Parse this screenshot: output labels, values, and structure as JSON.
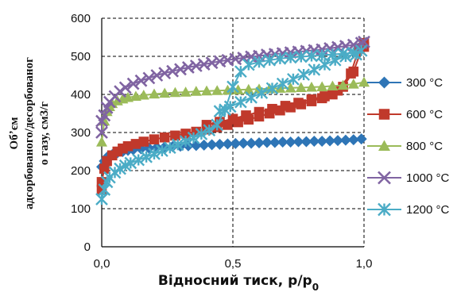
{
  "chart_data": {
    "type": "scatter",
    "xlabel": "Відносний тиск, p/p",
    "xlabel_sub": "0",
    "ylabel_lines": [
      "Обʼєм",
      "адсорбованого/десорбованог",
      "о газу, см3/г"
    ],
    "xlim": [
      0,
      1.0
    ],
    "ylim": [
      0,
      600
    ],
    "x_ticks": [
      0,
      0.5,
      1.0
    ],
    "x_tick_labels": [
      "0,0",
      "0,5",
      "1,0"
    ],
    "y_ticks": [
      0,
      100,
      200,
      300,
      400,
      500,
      600
    ],
    "y_tick_labels": [
      "0",
      "100",
      "200",
      "300",
      "400",
      "500",
      "600"
    ],
    "grid": "dashed",
    "legend_position": "right",
    "series": [
      {
        "name": "300 °C",
        "color": "#2E75B6",
        "marker": "diamond",
        "points": [
          [
            0.0,
            210
          ],
          [
            0.01,
            225
          ],
          [
            0.02,
            235
          ],
          [
            0.04,
            242
          ],
          [
            0.06,
            247
          ],
          [
            0.08,
            250
          ],
          [
            0.1,
            253
          ],
          [
            0.12,
            255
          ],
          [
            0.15,
            257
          ],
          [
            0.18,
            259
          ],
          [
            0.21,
            261
          ],
          [
            0.24,
            262
          ],
          [
            0.27,
            263
          ],
          [
            0.3,
            264
          ],
          [
            0.33,
            265
          ],
          [
            0.36,
            266
          ],
          [
            0.39,
            267
          ],
          [
            0.42,
            268
          ],
          [
            0.45,
            269
          ],
          [
            0.48,
            270
          ],
          [
            0.51,
            271
          ],
          [
            0.54,
            272
          ],
          [
            0.57,
            272
          ],
          [
            0.6,
            273
          ],
          [
            0.63,
            274
          ],
          [
            0.66,
            274
          ],
          [
            0.69,
            275
          ],
          [
            0.72,
            275
          ],
          [
            0.75,
            276
          ],
          [
            0.78,
            276
          ],
          [
            0.81,
            277
          ],
          [
            0.84,
            277
          ],
          [
            0.87,
            278
          ],
          [
            0.9,
            279
          ],
          [
            0.93,
            280
          ],
          [
            0.96,
            281
          ],
          [
            0.99,
            283
          ]
        ]
      },
      {
        "name": "600 °C",
        "color": "#C0392B",
        "marker": "square",
        "points": [
          [
            0.0,
            150
          ],
          [
            0.0,
            170
          ],
          [
            0.01,
            205
          ],
          [
            0.02,
            225
          ],
          [
            0.04,
            240
          ],
          [
            0.06,
            250
          ],
          [
            0.08,
            258
          ],
          [
            0.1,
            264
          ],
          [
            0.13,
            270
          ],
          [
            0.16,
            276
          ],
          [
            0.2,
            282
          ],
          [
            0.24,
            287
          ],
          [
            0.28,
            292
          ],
          [
            0.32,
            297
          ],
          [
            0.36,
            302
          ],
          [
            0.4,
            308
          ],
          [
            0.44,
            314
          ],
          [
            0.48,
            320
          ],
          [
            0.52,
            327
          ],
          [
            0.56,
            334
          ],
          [
            0.6,
            342
          ],
          [
            0.64,
            350
          ],
          [
            0.68,
            358
          ],
          [
            0.72,
            366
          ],
          [
            0.76,
            374
          ],
          [
            0.8,
            382
          ],
          [
            0.84,
            390
          ],
          [
            0.88,
            400
          ],
          [
            0.92,
            420
          ],
          [
            0.96,
            460
          ],
          [
            1.0,
            535
          ],
          [
            1.0,
            525
          ],
          [
            0.98,
            520
          ],
          [
            0.95,
            455
          ],
          [
            0.9,
            410
          ],
          [
            0.85,
            395
          ],
          [
            0.8,
            387
          ],
          [
            0.75,
            378
          ],
          [
            0.7,
            370
          ],
          [
            0.65,
            362
          ],
          [
            0.6,
            354
          ],
          [
            0.55,
            345
          ],
          [
            0.5,
            336
          ],
          [
            0.45,
            328
          ],
          [
            0.4,
            320
          ]
        ]
      },
      {
        "name": "800 °C",
        "color": "#9BBB59",
        "marker": "triangle",
        "points": [
          [
            0.0,
            275
          ],
          [
            0.01,
            330
          ],
          [
            0.02,
            355
          ],
          [
            0.03,
            368
          ],
          [
            0.04,
            376
          ],
          [
            0.06,
            383
          ],
          [
            0.08,
            388
          ],
          [
            0.1,
            392
          ],
          [
            0.13,
            395
          ],
          [
            0.16,
            398
          ],
          [
            0.2,
            401
          ],
          [
            0.24,
            403
          ],
          [
            0.28,
            405
          ],
          [
            0.32,
            406
          ],
          [
            0.36,
            408
          ],
          [
            0.4,
            409
          ],
          [
            0.44,
            410
          ],
          [
            0.48,
            411
          ],
          [
            0.52,
            412
          ],
          [
            0.56,
            413
          ],
          [
            0.6,
            414
          ],
          [
            0.64,
            415
          ],
          [
            0.68,
            416
          ],
          [
            0.72,
            417
          ],
          [
            0.76,
            418
          ],
          [
            0.8,
            419
          ],
          [
            0.84,
            420
          ],
          [
            0.88,
            422
          ],
          [
            0.92,
            424
          ],
          [
            0.96,
            427
          ],
          [
            1.0,
            432
          ]
        ]
      },
      {
        "name": "1000 °C",
        "color": "#8064A2",
        "marker": "x",
        "points": [
          [
            0.0,
            300
          ],
          [
            0.0,
            330
          ],
          [
            0.01,
            345
          ],
          [
            0.02,
            365
          ],
          [
            0.03,
            380
          ],
          [
            0.05,
            395
          ],
          [
            0.07,
            408
          ],
          [
            0.09,
            418
          ],
          [
            0.12,
            428
          ],
          [
            0.15,
            436
          ],
          [
            0.18,
            443
          ],
          [
            0.21,
            450
          ],
          [
            0.24,
            456
          ],
          [
            0.27,
            461
          ],
          [
            0.3,
            466
          ],
          [
            0.33,
            471
          ],
          [
            0.36,
            475
          ],
          [
            0.39,
            479
          ],
          [
            0.42,
            483
          ],
          [
            0.45,
            487
          ],
          [
            0.48,
            490
          ],
          [
            0.51,
            493
          ],
          [
            0.54,
            496
          ],
          [
            0.57,
            499
          ],
          [
            0.6,
            501
          ],
          [
            0.63,
            504
          ],
          [
            0.66,
            506
          ],
          [
            0.69,
            508
          ],
          [
            0.72,
            510
          ],
          [
            0.75,
            512
          ],
          [
            0.78,
            514
          ],
          [
            0.81,
            516
          ],
          [
            0.84,
            518
          ],
          [
            0.87,
            521
          ],
          [
            0.9,
            524
          ],
          [
            0.93,
            527
          ],
          [
            0.96,
            530
          ],
          [
            0.99,
            535
          ],
          [
            1.0,
            538
          ]
        ]
      },
      {
        "name": "1200 °C",
        "color": "#4BACC6",
        "marker": "star",
        "points": [
          [
            0.0,
            125
          ],
          [
            0.01,
            150
          ],
          [
            0.02,
            170
          ],
          [
            0.03,
            182
          ],
          [
            0.05,
            195
          ],
          [
            0.07,
            205
          ],
          [
            0.09,
            213
          ],
          [
            0.11,
            220
          ],
          [
            0.14,
            228
          ],
          [
            0.17,
            236
          ],
          [
            0.2,
            244
          ],
          [
            0.23,
            252
          ],
          [
            0.26,
            260
          ],
          [
            0.29,
            268
          ],
          [
            0.32,
            277
          ],
          [
            0.35,
            286
          ],
          [
            0.38,
            296
          ],
          [
            0.41,
            306
          ],
          [
            0.44,
            320
          ],
          [
            0.47,
            360
          ],
          [
            0.5,
            420
          ],
          [
            0.53,
            460
          ],
          [
            0.56,
            478
          ],
          [
            0.6,
            485
          ],
          [
            0.64,
            490
          ],
          [
            0.68,
            494
          ],
          [
            0.72,
            497
          ],
          [
            0.76,
            499
          ],
          [
            0.8,
            501
          ],
          [
            0.84,
            503
          ],
          [
            0.88,
            505
          ],
          [
            0.92,
            507
          ],
          [
            0.96,
            509
          ],
          [
            0.99,
            515
          ],
          [
            0.97,
            505
          ],
          [
            0.93,
            500
          ],
          [
            0.89,
            490
          ],
          [
            0.85,
            478
          ],
          [
            0.81,
            465
          ],
          [
            0.77,
            452
          ],
          [
            0.73,
            440
          ],
          [
            0.69,
            428
          ],
          [
            0.65,
            416
          ],
          [
            0.61,
            404
          ],
          [
            0.57,
            392
          ],
          [
            0.53,
            380
          ],
          [
            0.49,
            368
          ],
          [
            0.45,
            356
          ]
        ]
      }
    ]
  }
}
